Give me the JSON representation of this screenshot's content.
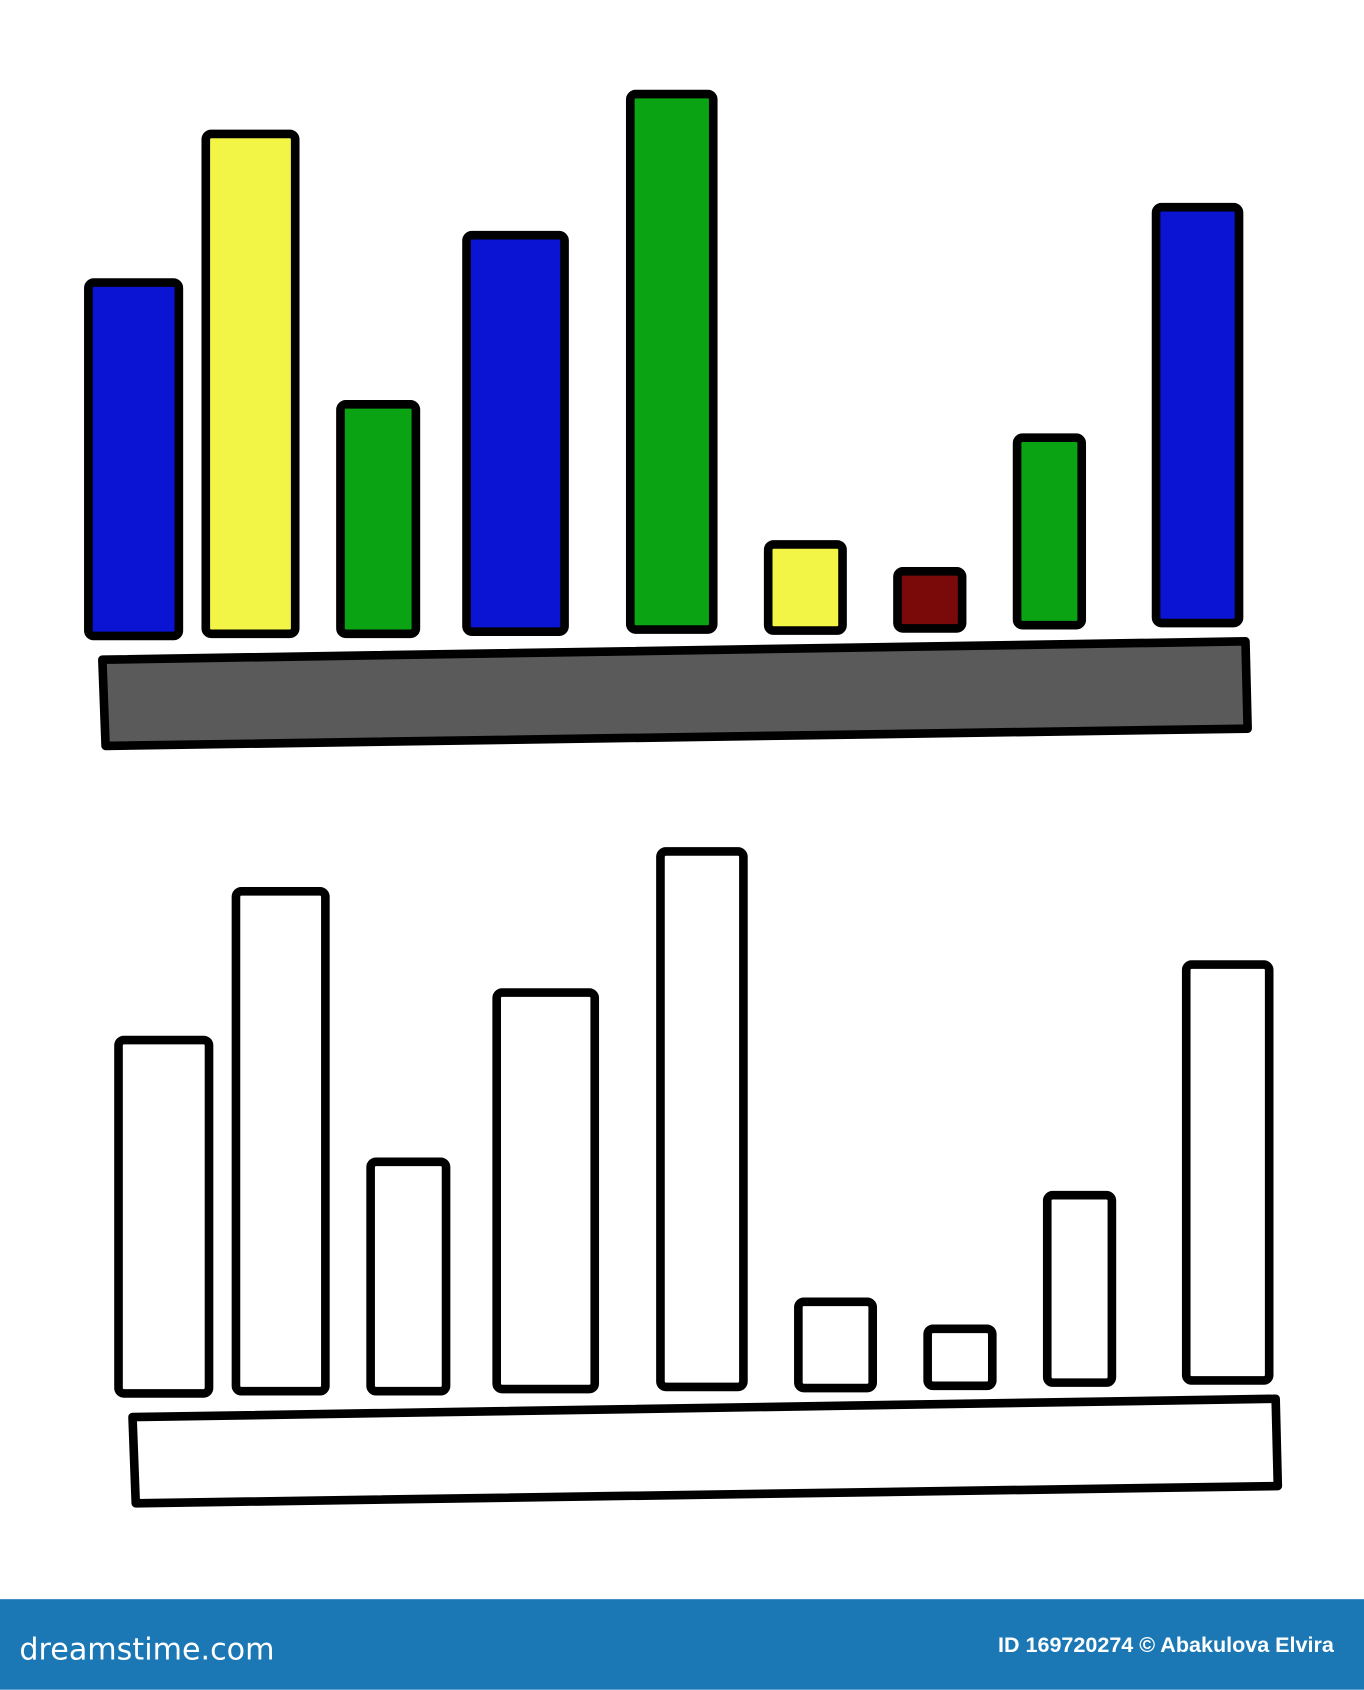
{
  "footer": {
    "brand": "dreamstime.com",
    "credit": "ID 169720274 © Abakulova Elvira"
  }
}
